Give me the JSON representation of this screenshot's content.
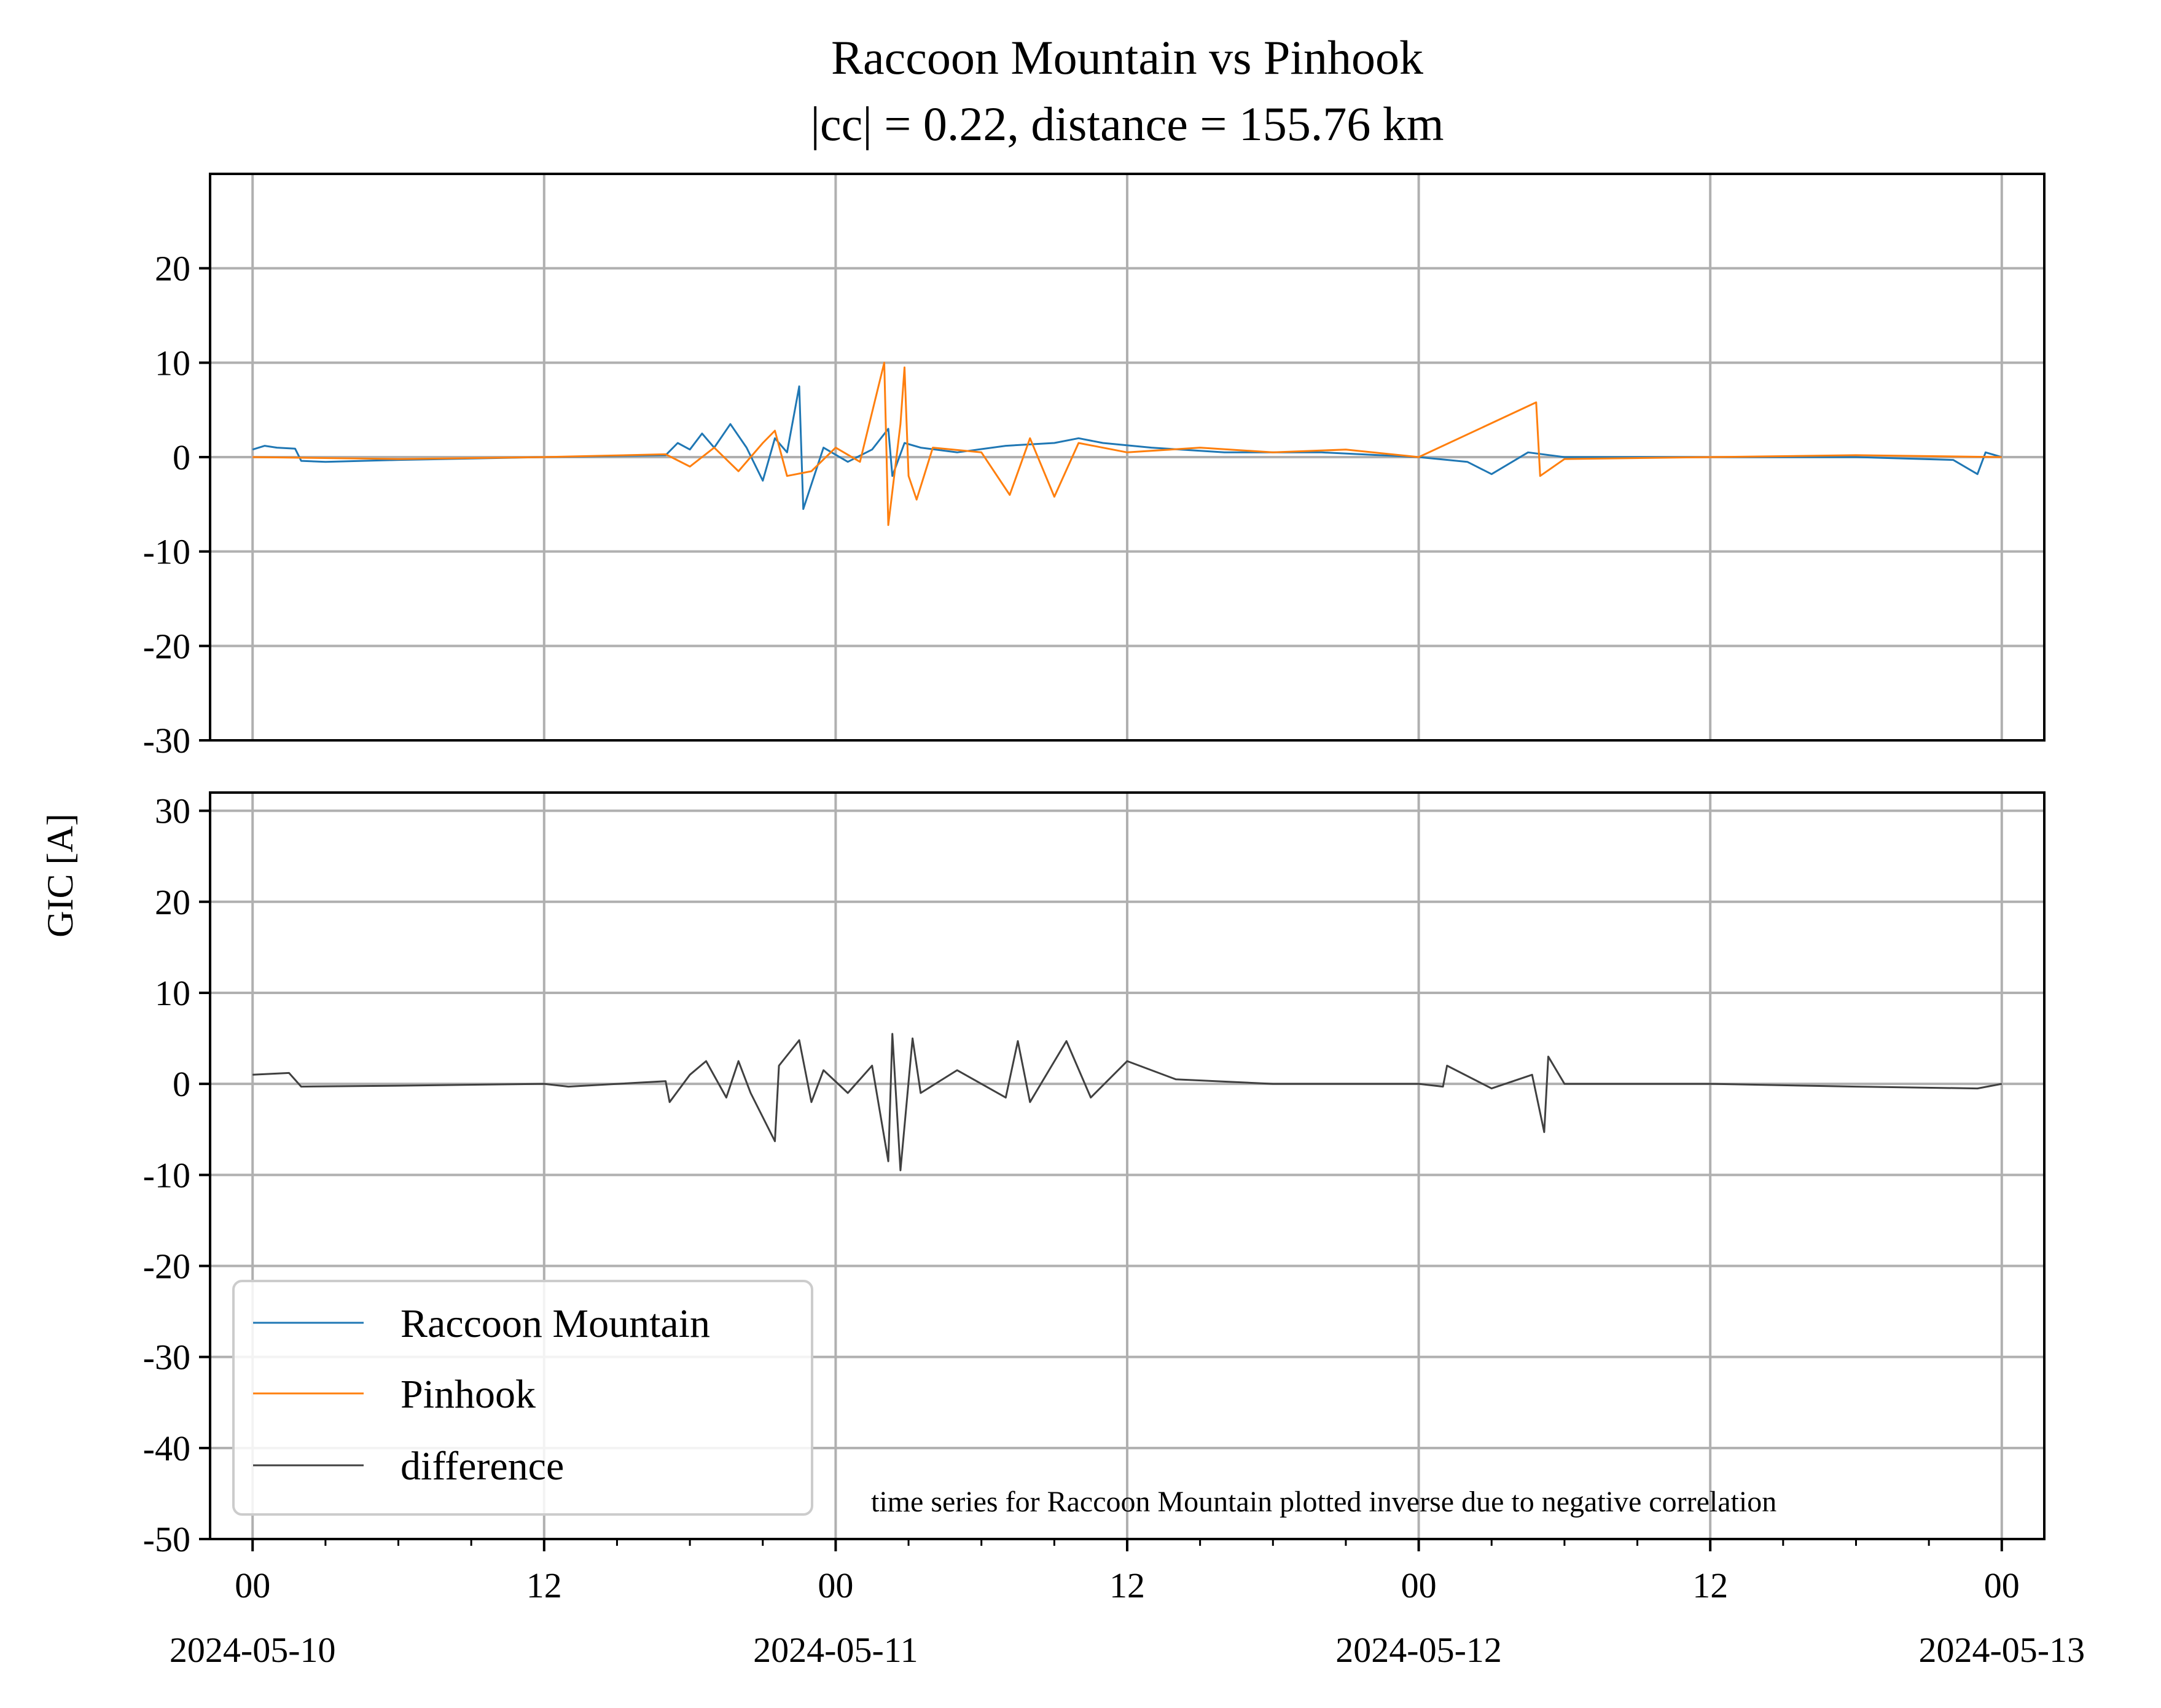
{
  "chart_data": {
    "type": "line",
    "title": "Raccoon Mountain vs Pinhook",
    "subtitle": "|cc| = 0.22, distance = 155.76 km",
    "ylabel": "GIC [A]",
    "annotation": "time series for Raccoon Mountain plotted inverse due to negative correlation",
    "x_ticks": [
      {
        "time": "2024-05-10 00:00",
        "label": "00",
        "date": "2024-05-10"
      },
      {
        "time": "2024-05-10 12:00",
        "label": "12",
        "date": ""
      },
      {
        "time": "2024-05-11 00:00",
        "label": "00",
        "date": "2024-05-11"
      },
      {
        "time": "2024-05-11 12:00",
        "label": "12",
        "date": ""
      },
      {
        "time": "2024-05-12 00:00",
        "label": "00",
        "date": "2024-05-12"
      },
      {
        "time": "2024-05-12 12:00",
        "label": "12",
        "date": ""
      },
      {
        "time": "2024-05-13 00:00",
        "label": "00",
        "date": "2024-05-13"
      }
    ],
    "x_minor_ticks_every_hours": 3,
    "xlim": [
      "2024-05-09 22:15",
      "2024-05-13 01:45"
    ],
    "grid": true,
    "legend_position": "lower-left",
    "legend": [
      "Raccoon Mountain",
      "Pinhook",
      "difference"
    ],
    "panels": [
      {
        "ylim": [
          -30,
          30
        ],
        "yticks": [
          -30,
          -20,
          -10,
          0,
          10,
          20
        ],
        "series": [
          {
            "name": "Raccoon Mountain",
            "color": "#1f77b4",
            "points": [
              [
                "2024-05-10 00:00",
                0.8
              ],
              [
                "2024-05-10 00:30",
                1.2
              ],
              [
                "2024-05-10 01:00",
                1.0
              ],
              [
                "2024-05-10 01:45",
                0.9
              ],
              [
                "2024-05-10 02:00",
                -0.4
              ],
              [
                "2024-05-10 03:00",
                -0.5
              ],
              [
                "2024-05-10 06:00",
                -0.3
              ],
              [
                "2024-05-10 12:00",
                0.0
              ],
              [
                "2024-05-10 17:00",
                0.2
              ],
              [
                "2024-05-10 17:30",
                1.5
              ],
              [
                "2024-05-10 18:00",
                0.8
              ],
              [
                "2024-05-10 18:30",
                2.5
              ],
              [
                "2024-05-10 19:00",
                1.0
              ],
              [
                "2024-05-10 19:40",
                3.5
              ],
              [
                "2024-05-10 20:20",
                1.0
              ],
              [
                "2024-05-10 21:00",
                -2.5
              ],
              [
                "2024-05-10 21:30",
                2.0
              ],
              [
                "2024-05-10 22:00",
                0.5
              ],
              [
                "2024-05-10 22:30",
                7.5
              ],
              [
                "2024-05-10 22:40",
                -5.5
              ],
              [
                "2024-05-10 23:30",
                1.0
              ],
              [
                "2024-05-11 00:30",
                -0.5
              ],
              [
                "2024-05-11 01:30",
                0.8
              ],
              [
                "2024-05-11 02:10",
                3.0
              ],
              [
                "2024-05-11 02:20",
                -2.0
              ],
              [
                "2024-05-11 02:50",
                1.5
              ],
              [
                "2024-05-11 03:30",
                1.0
              ],
              [
                "2024-05-11 05:00",
                0.5
              ],
              [
                "2024-05-11 07:00",
                1.2
              ],
              [
                "2024-05-11 09:00",
                1.5
              ],
              [
                "2024-05-11 10:00",
                2.0
              ],
              [
                "2024-05-11 11:00",
                1.5
              ],
              [
                "2024-05-11 13:00",
                1.0
              ],
              [
                "2024-05-11 16:00",
                0.5
              ],
              [
                "2024-05-11 20:00",
                0.5
              ],
              [
                "2024-05-12 00:00",
                0.0
              ],
              [
                "2024-05-12 02:00",
                -0.5
              ],
              [
                "2024-05-12 03:00",
                -1.8
              ],
              [
                "2024-05-12 04:30",
                0.5
              ],
              [
                "2024-05-12 06:00",
                0.0
              ],
              [
                "2024-05-12 12:00",
                0.0
              ],
              [
                "2024-05-12 18:00",
                0.0
              ],
              [
                "2024-05-12 22:00",
                -0.3
              ],
              [
                "2024-05-12 23:00",
                -1.8
              ],
              [
                "2024-05-12 23:20",
                0.5
              ],
              [
                "2024-05-13 00:00",
                0.0
              ]
            ]
          },
          {
            "name": "Pinhook",
            "color": "#ff7f0e",
            "points": [
              [
                "2024-05-10 00:00",
                0.0
              ],
              [
                "2024-05-10 06:00",
                -0.2
              ],
              [
                "2024-05-10 12:00",
                0.0
              ],
              [
                "2024-05-10 17:00",
                0.3
              ],
              [
                "2024-05-10 18:00",
                -1.0
              ],
              [
                "2024-05-10 19:00",
                1.0
              ],
              [
                "2024-05-10 20:00",
                -1.5
              ],
              [
                "2024-05-10 21:00",
                1.5
              ],
              [
                "2024-05-10 21:30",
                2.8
              ],
              [
                "2024-05-10 22:00",
                -2.0
              ],
              [
                "2024-05-10 23:00",
                -1.5
              ],
              [
                "2024-05-11 00:00",
                1.0
              ],
              [
                "2024-05-11 01:00",
                -0.5
              ],
              [
                "2024-05-11 02:00",
                10.0
              ],
              [
                "2024-05-11 02:10",
                -7.2
              ],
              [
                "2024-05-11 02:40",
                3.5
              ],
              [
                "2024-05-11 02:50",
                9.5
              ],
              [
                "2024-05-11 03:00",
                -2.0
              ],
              [
                "2024-05-11 03:20",
                -4.5
              ],
              [
                "2024-05-11 04:00",
                1.0
              ],
              [
                "2024-05-11 06:00",
                0.5
              ],
              [
                "2024-05-11 07:10",
                -4.0
              ],
              [
                "2024-05-11 08:00",
                2.0
              ],
              [
                "2024-05-11 09:00",
                -4.2
              ],
              [
                "2024-05-11 10:00",
                1.5
              ],
              [
                "2024-05-11 12:00",
                0.5
              ],
              [
                "2024-05-11 15:00",
                1.0
              ],
              [
                "2024-05-11 18:00",
                0.5
              ],
              [
                "2024-05-11 21:00",
                0.8
              ],
              [
                "2024-05-12 00:00",
                0.0
              ],
              [
                "2024-05-12 04:50",
                5.8
              ],
              [
                "2024-05-12 05:00",
                -2.0
              ],
              [
                "2024-05-12 06:00",
                -0.2
              ],
              [
                "2024-05-12 12:00",
                0.0
              ],
              [
                "2024-05-12 18:00",
                0.2
              ],
              [
                "2024-05-13 00:00",
                0.0
              ]
            ]
          }
        ]
      },
      {
        "ylim": [
          -50,
          32
        ],
        "yticks": [
          -50,
          -40,
          -30,
          -20,
          -10,
          0,
          10,
          20,
          30
        ],
        "series": [
          {
            "name": "difference",
            "color": "#404040",
            "points": [
              [
                "2024-05-10 00:00",
                1.0
              ],
              [
                "2024-05-10 01:30",
                1.2
              ],
              [
                "2024-05-10 02:00",
                -0.3
              ],
              [
                "2024-05-10 06:00",
                -0.2
              ],
              [
                "2024-05-10 12:00",
                0.0
              ],
              [
                "2024-05-10 13:00",
                -0.3
              ],
              [
                "2024-05-10 17:00",
                0.3
              ],
              [
                "2024-05-10 17:10",
                -2.0
              ],
              [
                "2024-05-10 18:00",
                1.0
              ],
              [
                "2024-05-10 18:40",
                2.5
              ],
              [
                "2024-05-10 19:30",
                -1.5
              ],
              [
                "2024-05-10 20:00",
                2.5
              ],
              [
                "2024-05-10 20:30",
                -1.0
              ],
              [
                "2024-05-10 21:30",
                -6.3
              ],
              [
                "2024-05-10 21:40",
                2.0
              ],
              [
                "2024-05-10 22:30",
                4.8
              ],
              [
                "2024-05-10 23:00",
                -2.0
              ],
              [
                "2024-05-10 23:30",
                1.5
              ],
              [
                "2024-05-11 00:30",
                -1.0
              ],
              [
                "2024-05-11 01:30",
                2.0
              ],
              [
                "2024-05-11 02:10",
                -8.5
              ],
              [
                "2024-05-11 02:20",
                5.5
              ],
              [
                "2024-05-11 02:40",
                -9.5
              ],
              [
                "2024-05-11 03:10",
                5.0
              ],
              [
                "2024-05-11 03:30",
                -1.0
              ],
              [
                "2024-05-11 05:00",
                1.5
              ],
              [
                "2024-05-11 07:00",
                -1.5
              ],
              [
                "2024-05-11 07:30",
                4.7
              ],
              [
                "2024-05-11 08:00",
                -2.0
              ],
              [
                "2024-05-11 09:30",
                4.7
              ],
              [
                "2024-05-11 10:30",
                -1.5
              ],
              [
                "2024-05-11 12:00",
                2.5
              ],
              [
                "2024-05-11 14:00",
                0.5
              ],
              [
                "2024-05-11 18:00",
                0.0
              ],
              [
                "2024-05-12 00:00",
                0.0
              ],
              [
                "2024-05-12 01:00",
                -0.3
              ],
              [
                "2024-05-12 01:10",
                2.0
              ],
              [
                "2024-05-12 03:00",
                -0.5
              ],
              [
                "2024-05-12 04:40",
                1.0
              ],
              [
                "2024-05-12 05:10",
                -5.3
              ],
              [
                "2024-05-12 05:20",
                3.0
              ],
              [
                "2024-05-12 06:00",
                0.0
              ],
              [
                "2024-05-12 12:00",
                0.0
              ],
              [
                "2024-05-12 18:00",
                -0.3
              ],
              [
                "2024-05-12 23:00",
                -0.5
              ],
              [
                "2024-05-13 00:00",
                0.0
              ]
            ]
          }
        ]
      }
    ]
  }
}
